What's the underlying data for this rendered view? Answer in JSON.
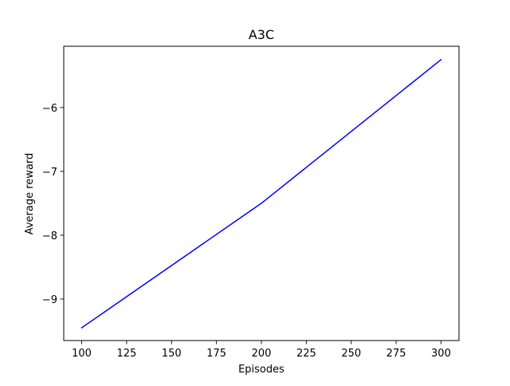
{
  "chart_data": {
    "type": "line",
    "title": "A3C",
    "xlabel": "Episodes",
    "ylabel": "Average reward",
    "x": [
      100,
      200,
      300
    ],
    "series": [
      {
        "values": [
          -9.45,
          -7.5,
          -5.25
        ],
        "color": "#0000ff"
      }
    ],
    "xlim": [
      90,
      310
    ],
    "ylim": [
      -9.65,
      -5.04
    ],
    "xticks": [
      100,
      125,
      150,
      175,
      200,
      225,
      250,
      275,
      300
    ],
    "xtick_labels": [
      "100",
      "125",
      "150",
      "175",
      "200",
      "225",
      "250",
      "275",
      "300"
    ],
    "yticks": [
      -9,
      -8,
      -7,
      -6
    ],
    "ytick_labels": [
      "−9",
      "−8",
      "−7",
      "−6"
    ],
    "grid": false,
    "legend": "none"
  }
}
